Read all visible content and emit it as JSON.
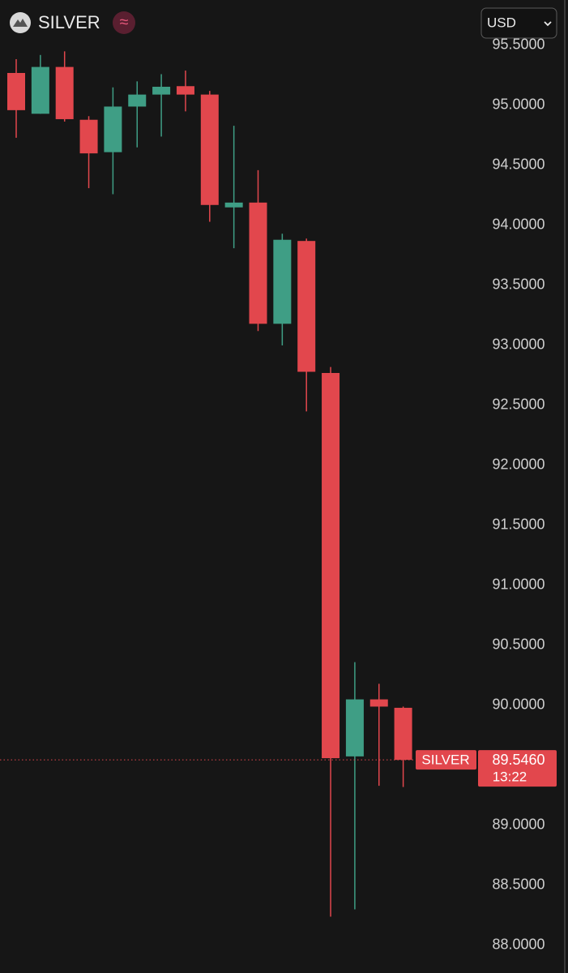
{
  "header": {
    "symbol": "SILVER",
    "badge": "≈",
    "currency": "USD"
  },
  "chart_data": {
    "type": "candlestick",
    "up_color": "#3f9e85",
    "down_color": "#e2474d",
    "open": [
      95.27,
      94.93,
      95.32,
      94.88,
      94.61,
      94.99,
      95.09,
      95.16,
      95.09,
      94.15,
      94.19,
      93.18,
      93.87,
      92.77,
      89.575,
      90.05,
      89.98
    ],
    "high": [
      95.385,
      95.42,
      95.45,
      94.91,
      95.15,
      95.2,
      95.26,
      95.29,
      95.12,
      94.83,
      94.46,
      93.93,
      93.89,
      92.82,
      90.36,
      90.18,
      89.99
    ],
    "low": [
      94.73,
      94.93,
      94.865,
      94.31,
      94.26,
      94.65,
      94.74,
      94.95,
      94.03,
      93.81,
      93.12,
      93.0,
      92.45,
      88.24,
      88.3,
      89.33,
      89.32
    ],
    "close": [
      94.96,
      95.32,
      94.885,
      94.6,
      94.99,
      95.09,
      95.155,
      95.09,
      94.17,
      94.19,
      93.18,
      93.88,
      92.78,
      89.56,
      90.05,
      89.99,
      89.546
    ],
    "ylim": [
      87.77,
      95.878
    ],
    "yticks": [
      {
        "value": 95.5,
        "label": "95.5000"
      },
      {
        "value": 95,
        "label": "95.0000"
      },
      {
        "value": 94.5,
        "label": "94.5000"
      },
      {
        "value": 94,
        "label": "94.0000"
      },
      {
        "value": 93.5,
        "label": "93.5000"
      },
      {
        "value": 93,
        "label": "93.0000"
      },
      {
        "value": 92.5,
        "label": "92.5000"
      },
      {
        "value": 92,
        "label": "92.0000"
      },
      {
        "value": 91.5,
        "label": "91.5000"
      },
      {
        "value": 91,
        "label": "91.0000"
      },
      {
        "value": 90.5,
        "label": "90.5000"
      },
      {
        "value": 90,
        "label": "90.0000"
      },
      {
        "value": 89,
        "label": "89.0000"
      },
      {
        "value": 88.5,
        "label": "88.5000"
      },
      {
        "value": 88,
        "label": "88.0000"
      }
    ],
    "grid": false,
    "last_price": {
      "series_label": "SILVER",
      "value": 89.546,
      "value_label": "89.5460",
      "countdown": "13:22"
    }
  }
}
